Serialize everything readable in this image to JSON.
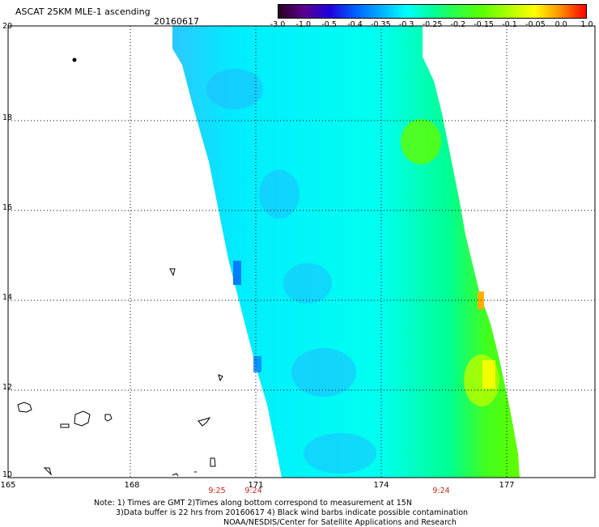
{
  "title": "ASCAT 25KM MLE-1 ascending",
  "date": "20160617",
  "colorbar": {
    "labels": [
      "-3.0",
      "-1.0",
      "-0.5",
      "-0.4",
      "-0.35",
      "-0.3",
      "-0.25",
      "-0.2",
      "-0.15",
      "-0.1",
      "-0.05",
      "0.0",
      "1.0"
    ],
    "colors": [
      "#2a001f",
      "#5a0090",
      "#2000e0",
      "#0060ff",
      "#00b0ff",
      "#00ffff",
      "#00ff9c",
      "#30ff40",
      "#60ff00",
      "#b0ff00",
      "#ffff00",
      "#ff9000",
      "#ff0000"
    ]
  },
  "axes": {
    "lat_labels": [
      "20",
      "18",
      "16",
      "14",
      "12",
      "10"
    ],
    "lon_labels": [
      "165",
      "168",
      "171",
      "174",
      "177"
    ]
  },
  "times": {
    "t1": "9:25",
    "t2": "9:24",
    "t3": "9:24"
  },
  "notes": {
    "line1": "Note: 1) Times are GMT 2)Times along bottom correspond to measurement at 15N",
    "line2": "3)Data buffer is 22 hrs from 20160617 4) Black wind barbs indicate possible contamination",
    "line3": "NOAA/NESDIS/Center for Satellite Applications and Research"
  }
}
